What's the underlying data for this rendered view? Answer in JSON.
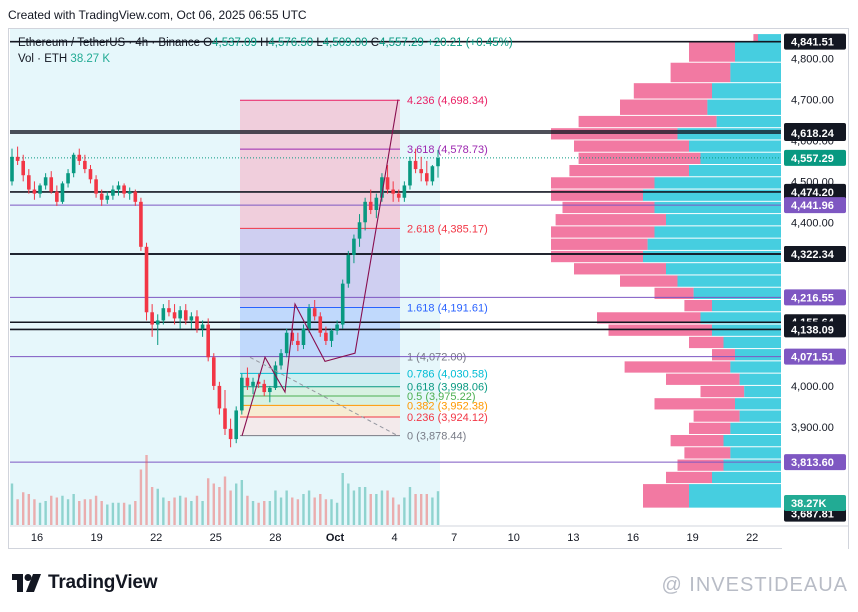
{
  "header": {
    "caption": "Created with TradingView.com, Oct 06, 2025 06:55 UTC"
  },
  "legend": {
    "symbol": "Ethereum / TetherUS · 4h · Binance",
    "o_label": "O",
    "o_value": "4,537.09",
    "h_label": "H",
    "h_value": "4,576.50",
    "l_label": "L",
    "l_value": "4,509.00",
    "c_label": "C",
    "c_value": "4,557.29",
    "change": "+20.21 (+0.45%)",
    "vol_label": "Vol · ETH",
    "vol_value": "38.27 K"
  },
  "branding": {
    "logo_text": "TradingView",
    "watermark": "@ INVESTIDEAUA"
  },
  "chart_data": {
    "type": "candlestick",
    "symbol": "ETHUSDT",
    "timeframe": "4h",
    "exchange": "Binance",
    "ylim": [
      3660,
      4870
    ],
    "x_ticks": [
      "16",
      "19",
      "22",
      "25",
      "28",
      "Oct",
      "4",
      "7",
      "10",
      "13",
      "16",
      "19",
      "22"
    ],
    "y_ticks": [
      {
        "value": 4800,
        "label": "4,800.00"
      },
      {
        "value": 4700,
        "label": "4,700.00"
      },
      {
        "value": 4600,
        "label": "4,600.00"
      },
      {
        "value": 4500,
        "label": "4,500.00"
      },
      {
        "value": 4400,
        "label": "4,400.00"
      },
      {
        "value": 4000,
        "label": "4,000.00"
      },
      {
        "value": 3900,
        "label": "3,900.00"
      }
    ],
    "candles": [
      [
        4500,
        4580,
        4490,
        4560
      ],
      [
        4560,
        4585,
        4540,
        4550
      ],
      [
        4550,
        4565,
        4500,
        4515
      ],
      [
        4515,
        4530,
        4470,
        4480
      ],
      [
        4480,
        4500,
        4455,
        4470
      ],
      [
        4470,
        4495,
        4460,
        4490
      ],
      [
        4490,
        4520,
        4480,
        4510
      ],
      [
        4510,
        4525,
        4470,
        4475
      ],
      [
        4475,
        4490,
        4440,
        4450
      ],
      [
        4450,
        4500,
        4445,
        4495
      ],
      [
        4495,
        4530,
        4485,
        4520
      ],
      [
        4520,
        4570,
        4510,
        4565
      ],
      [
        4565,
        4580,
        4540,
        4550
      ],
      [
        4550,
        4565,
        4520,
        4530
      ],
      [
        4530,
        4540,
        4495,
        4505
      ],
      [
        4505,
        4515,
        4460,
        4470
      ],
      [
        4470,
        4480,
        4440,
        4455
      ],
      [
        4455,
        4475,
        4445,
        4465
      ],
      [
        4465,
        4490,
        4455,
        4480
      ],
      [
        4480,
        4500,
        4465,
        4490
      ],
      [
        4490,
        4495,
        4460,
        4470
      ],
      [
        4470,
        4485,
        4455,
        4475
      ],
      [
        4475,
        4480,
        4440,
        4450
      ],
      [
        4450,
        4460,
        4330,
        4340
      ],
      [
        4340,
        4350,
        4160,
        4180
      ],
      [
        4180,
        4200,
        4120,
        4150
      ],
      [
        4150,
        4175,
        4100,
        4160
      ],
      [
        4160,
        4200,
        4150,
        4190
      ],
      [
        4190,
        4210,
        4170,
        4180
      ],
      [
        4180,
        4200,
        4150,
        4165
      ],
      [
        4165,
        4195,
        4140,
        4185
      ],
      [
        4185,
        4200,
        4150,
        4160
      ],
      [
        4160,
        4180,
        4140,
        4170
      ],
      [
        4170,
        4185,
        4130,
        4140
      ],
      [
        4140,
        4160,
        4120,
        4150
      ],
      [
        4150,
        4165,
        4060,
        4070
      ],
      [
        4070,
        4080,
        3990,
        4000
      ],
      [
        4000,
        4010,
        3930,
        3945
      ],
      [
        3945,
        3990,
        3880,
        3895
      ],
      [
        3895,
        3920,
        3850,
        3870
      ],
      [
        3870,
        3950,
        3860,
        3940
      ],
      [
        3940,
        4030,
        3930,
        4020
      ],
      [
        4020,
        4045,
        3990,
        4000
      ],
      [
        4000,
        4020,
        3980,
        4010
      ],
      [
        4010,
        4030,
        3995,
        4005
      ],
      [
        4005,
        4015,
        3975,
        3985
      ],
      [
        3985,
        4000,
        3960,
        3995
      ],
      [
        3995,
        4060,
        3990,
        4050
      ],
      [
        4050,
        4090,
        4040,
        4080
      ],
      [
        4080,
        4140,
        4070,
        4130
      ],
      [
        4130,
        4150,
        4100,
        4110
      ],
      [
        4110,
        4130,
        4085,
        4100
      ],
      [
        4100,
        4150,
        4090,
        4140
      ],
      [
        4140,
        4200,
        4130,
        4190
      ],
      [
        4190,
        4210,
        4160,
        4170
      ],
      [
        4170,
        4180,
        4120,
        4130
      ],
      [
        4130,
        4145,
        4100,
        4110
      ],
      [
        4110,
        4140,
        4095,
        4135
      ],
      [
        4135,
        4160,
        4125,
        4150
      ],
      [
        4150,
        4260,
        4140,
        4250
      ],
      [
        4250,
        4330,
        4240,
        4320
      ],
      [
        4320,
        4370,
        4300,
        4360
      ],
      [
        4360,
        4420,
        4340,
        4400
      ],
      [
        4400,
        4460,
        4380,
        4450
      ],
      [
        4450,
        4480,
        4420,
        4430
      ],
      [
        4430,
        4470,
        4410,
        4460
      ],
      [
        4460,
        4520,
        4450,
        4510
      ],
      [
        4510,
        4540,
        4470,
        4480
      ],
      [
        4480,
        4500,
        4450,
        4470
      ],
      [
        4470,
        4480,
        4450,
        4460
      ],
      [
        4460,
        4500,
        4450,
        4490
      ],
      [
        4490,
        4560,
        4480,
        4550
      ],
      [
        4550,
        4580,
        4520,
        4530
      ],
      [
        4530,
        4560,
        4500,
        4520
      ],
      [
        4520,
        4550,
        4490,
        4500
      ],
      [
        4500,
        4540,
        4490,
        4537
      ],
      [
        4537,
        4577,
        4509,
        4557
      ]
    ],
    "horizontal_levels": [
      {
        "value": 4841.51,
        "label": "4,841.51",
        "color": "#131722"
      },
      {
        "value": 4623.1,
        "label": "4,623.10",
        "color": "#131722"
      },
      {
        "value": 4618.24,
        "label": "4,618.24",
        "color": "#131722"
      },
      {
        "value": 4557.29,
        "label": "4,557.29",
        "color": "#089981"
      },
      {
        "value": 4474.2,
        "label": "4,474.20",
        "color": "#131722"
      },
      {
        "value": 4441.96,
        "label": "4,441.96",
        "color": "#7e57c2"
      },
      {
        "value": 4322.59,
        "label": "4,322.59",
        "color": "#131722"
      },
      {
        "value": 4322.34,
        "label": "4,322.34",
        "color": "#131722"
      },
      {
        "value": 4216.55,
        "label": "4,216.55",
        "color": "#7e57c2"
      },
      {
        "value": 4155.64,
        "label": "4,155.64",
        "color": "#131722"
      },
      {
        "value": 4138.09,
        "label": "4,138.09",
        "color": "#131722"
      },
      {
        "value": 4071.51,
        "label": "4,071.51",
        "color": "#7e57c2"
      },
      {
        "value": 3813.6,
        "label": "3,813.60",
        "color": "#7e57c2"
      },
      {
        "value": 3687.81,
        "label": "3,687.81",
        "color": "#131722"
      }
    ],
    "volume_badge": {
      "label": "38.27K",
      "color": "#22ab94"
    },
    "fib_levels": [
      {
        "ratio": "4.236",
        "value": 4698.34,
        "label": "4.236 (4,698.34)",
        "color": "#e91e63"
      },
      {
        "ratio": "3.618",
        "value": 4578.73,
        "label": "3.618 (4,578.73)",
        "color": "#9c27b0"
      },
      {
        "ratio": "2.618",
        "value": 4385.17,
        "label": "2.618 (4,385.17)",
        "color": "#f23645"
      },
      {
        "ratio": "1.618",
        "value": 4191.61,
        "label": "1.618 (4,191.61)",
        "color": "#2962ff"
      },
      {
        "ratio": "1",
        "value": 4072.0,
        "label": "1 (4,072.00)",
        "color": "#787b86"
      },
      {
        "ratio": "0.786",
        "value": 4030.58,
        "label": "0.786 (4,030.58)",
        "color": "#00bcd4"
      },
      {
        "ratio": "0.618",
        "value": 3998.06,
        "label": "0.618 (3,998.06)",
        "color": "#089981"
      },
      {
        "ratio": "0.5",
        "value": 3975.22,
        "label": "0.5 (3,975.22)",
        "color": "#4caf50"
      },
      {
        "ratio": "0.382",
        "value": 3952.38,
        "label": "0.382 (3,952.38)",
        "color": "#ff9800"
      },
      {
        "ratio": "0.236",
        "value": 3924.12,
        "label": "0.236 (3,924.12)",
        "color": "#f23645"
      },
      {
        "ratio": "0",
        "value": 3878.44,
        "label": "0 (3,878.44)",
        "color": "#787b86"
      }
    ],
    "volume_profile_bins": [
      [
        4860,
        4840,
        0.12,
        0.1
      ],
      [
        4840,
        4790,
        0.4,
        0.2
      ],
      [
        4790,
        4740,
        0.48,
        0.22
      ],
      [
        4740,
        4700,
        0.64,
        0.3
      ],
      [
        4700,
        4660,
        0.7,
        0.32
      ],
      [
        4660,
        4630,
        0.88,
        0.28
      ],
      [
        4630,
        4600,
        1.0,
        0.45
      ],
      [
        4600,
        4570,
        0.9,
        0.4
      ],
      [
        4570,
        4540,
        0.88,
        0.35
      ],
      [
        4540,
        4510,
        0.92,
        0.4
      ],
      [
        4510,
        4480,
        1.0,
        0.55
      ],
      [
        4480,
        4450,
        1.0,
        0.6
      ],
      [
        4450,
        4420,
        0.95,
        0.55
      ],
      [
        4420,
        4390,
        0.98,
        0.5
      ],
      [
        4390,
        4360,
        1.0,
        0.55
      ],
      [
        4360,
        4330,
        1.0,
        0.58
      ],
      [
        4330,
        4300,
        1.0,
        0.6
      ],
      [
        4300,
        4270,
        0.9,
        0.5
      ],
      [
        4270,
        4240,
        0.7,
        0.45
      ],
      [
        4240,
        4210,
        0.55,
        0.38
      ],
      [
        4210,
        4180,
        0.42,
        0.3
      ],
      [
        4180,
        4150,
        0.8,
        0.35
      ],
      [
        4150,
        4120,
        0.75,
        0.3
      ],
      [
        4120,
        4090,
        0.4,
        0.25
      ],
      [
        4090,
        4060,
        0.3,
        0.2
      ],
      [
        4060,
        4030,
        0.68,
        0.22
      ],
      [
        4030,
        4000,
        0.5,
        0.18
      ],
      [
        4000,
        3970,
        0.35,
        0.16
      ],
      [
        3970,
        3940,
        0.55,
        0.2
      ],
      [
        3940,
        3910,
        0.38,
        0.18
      ],
      [
        3910,
        3880,
        0.4,
        0.22
      ],
      [
        3880,
        3850,
        0.48,
        0.25
      ],
      [
        3850,
        3820,
        0.42,
        0.22
      ],
      [
        3820,
        3790,
        0.45,
        0.25
      ],
      [
        3790,
        3760,
        0.5,
        0.3
      ],
      [
        3760,
        3700,
        0.6,
        0.4
      ]
    ]
  }
}
